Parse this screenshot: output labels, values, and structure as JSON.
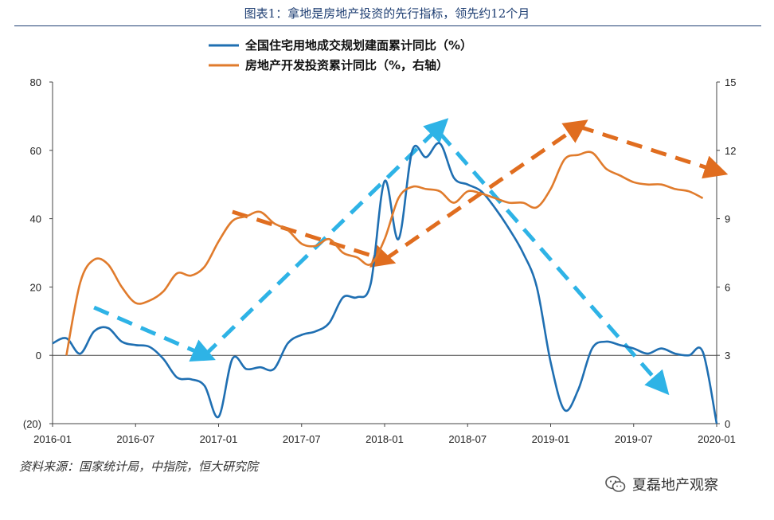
{
  "header": {
    "title": "图表1：拿地是房地产投资的先行指标，领先约12个月"
  },
  "source": "资料来源：国家统计局，中指院，恒大研究院",
  "watermark": {
    "text": "夏磊地产观察",
    "icon": "wechat-icon"
  },
  "colors": {
    "blue": "#1f6fb2",
    "orange": "#e07b2c",
    "blue_arrow": "#2eb3e6",
    "orange_arrow": "#e06d1f",
    "negative_label": "#c00000"
  },
  "chart_data": {
    "type": "line",
    "x_ticks": [
      "2016-01",
      "2016-07",
      "2017-01",
      "2017-07",
      "2018-01",
      "2018-07",
      "2019-01",
      "2019-07",
      "2020-01"
    ],
    "y_left": {
      "ticks": [
        80,
        60,
        40,
        20,
        0,
        -20
      ],
      "tick_labels": [
        "80",
        "60",
        "40",
        "20",
        "0",
        "(20)"
      ],
      "range": [
        -20,
        80
      ]
    },
    "y_right": {
      "ticks": [
        15,
        12,
        9,
        6,
        3,
        0
      ],
      "tick_labels": [
        "15",
        "12",
        "9",
        "6",
        "3",
        "0"
      ],
      "range": [
        0,
        15
      ]
    },
    "series": [
      {
        "name": "全国住宅用地成交规划建面累计同比（%）",
        "axis": "left",
        "x": [
          "2016-01",
          "2016-02",
          "2016-03",
          "2016-04",
          "2016-05",
          "2016-06",
          "2016-07",
          "2016-08",
          "2016-09",
          "2016-10",
          "2016-11",
          "2016-12",
          "2017-01",
          "2017-02",
          "2017-03",
          "2017-04",
          "2017-05",
          "2017-06",
          "2017-07",
          "2017-08",
          "2017-09",
          "2017-10",
          "2017-11",
          "2017-12",
          "2018-01",
          "2018-02",
          "2018-03",
          "2018-04",
          "2018-05",
          "2018-06",
          "2018-07",
          "2018-08",
          "2018-09",
          "2018-10",
          "2018-11",
          "2018-12",
          "2019-01",
          "2019-02",
          "2019-03",
          "2019-04",
          "2019-05",
          "2019-06",
          "2019-07",
          "2019-08",
          "2019-09",
          "2019-10",
          "2019-11",
          "2019-12",
          "2020-01"
        ],
        "values": [
          3.5,
          5,
          0.5,
          7,
          8,
          4,
          3,
          2.5,
          -1,
          -6.5,
          -7,
          -9,
          -18,
          -1,
          -4,
          -3.5,
          -4,
          3.5,
          6,
          7,
          9.5,
          17,
          17,
          21,
          51,
          34,
          60,
          58,
          62,
          52,
          50,
          48,
          43,
          37,
          30,
          20,
          -2,
          -16,
          -10,
          2,
          4,
          3,
          2,
          0.5,
          2,
          0.5,
          0,
          1,
          -20
        ]
      },
      {
        "name": "房地产开发投资累计同比（%，右轴）",
        "axis": "right",
        "x": [
          "2016-02",
          "2016-03",
          "2016-04",
          "2016-05",
          "2016-06",
          "2016-07",
          "2016-08",
          "2016-09",
          "2016-10",
          "2016-11",
          "2016-12",
          "2017-01",
          "2017-02",
          "2017-03",
          "2017-04",
          "2017-05",
          "2017-06",
          "2017-07",
          "2017-08",
          "2017-09",
          "2017-10",
          "2017-11",
          "2017-12",
          "2018-01",
          "2018-02",
          "2018-03",
          "2018-04",
          "2018-05",
          "2018-06",
          "2018-07",
          "2018-08",
          "2018-09",
          "2018-10",
          "2018-11",
          "2018-12",
          "2019-01",
          "2019-02",
          "2019-03",
          "2019-04",
          "2019-05",
          "2019-06",
          "2019-07",
          "2019-08",
          "2019-09",
          "2019-10",
          "2019-11",
          "2019-12"
        ],
        "values": [
          3.0,
          6.2,
          7.2,
          7.0,
          6.0,
          5.3,
          5.4,
          5.8,
          6.6,
          6.5,
          6.9,
          8.0,
          8.9,
          9.1,
          9.3,
          8.8,
          8.5,
          7.9,
          7.8,
          8.1,
          7.5,
          7.3,
          7.0,
          8.1,
          9.9,
          10.4,
          10.3,
          10.2,
          9.7,
          10.2,
          10.1,
          9.9,
          9.7,
          9.7,
          9.5,
          10.3,
          11.6,
          11.8,
          11.9,
          11.2,
          10.9,
          10.6,
          10.5,
          10.5,
          10.3,
          10.2,
          9.9
        ]
      }
    ],
    "arrows": [
      {
        "color": "blue",
        "from": [
          "2016-04",
          14
        ],
        "to": [
          "2016-12",
          0
        ]
      },
      {
        "color": "blue",
        "from": [
          "2016-12",
          0
        ],
        "to": [
          "2018-05",
          67
        ]
      },
      {
        "color": "blue",
        "from": [
          "2018-05",
          65
        ],
        "to": [
          "2019-09",
          -9
        ]
      },
      {
        "color": "orange",
        "from": [
          "2017-02",
          42
        ],
        "to": [
          "2018-01",
          28
        ]
      },
      {
        "color": "orange",
        "from": [
          "2018-01",
          28
        ],
        "to": [
          "2019-03",
          67
        ]
      },
      {
        "color": "orange",
        "from": [
          "2019-03",
          67
        ],
        "to": [
          "2020-01",
          54
        ]
      }
    ],
    "legend_position": "top",
    "grid": false
  }
}
